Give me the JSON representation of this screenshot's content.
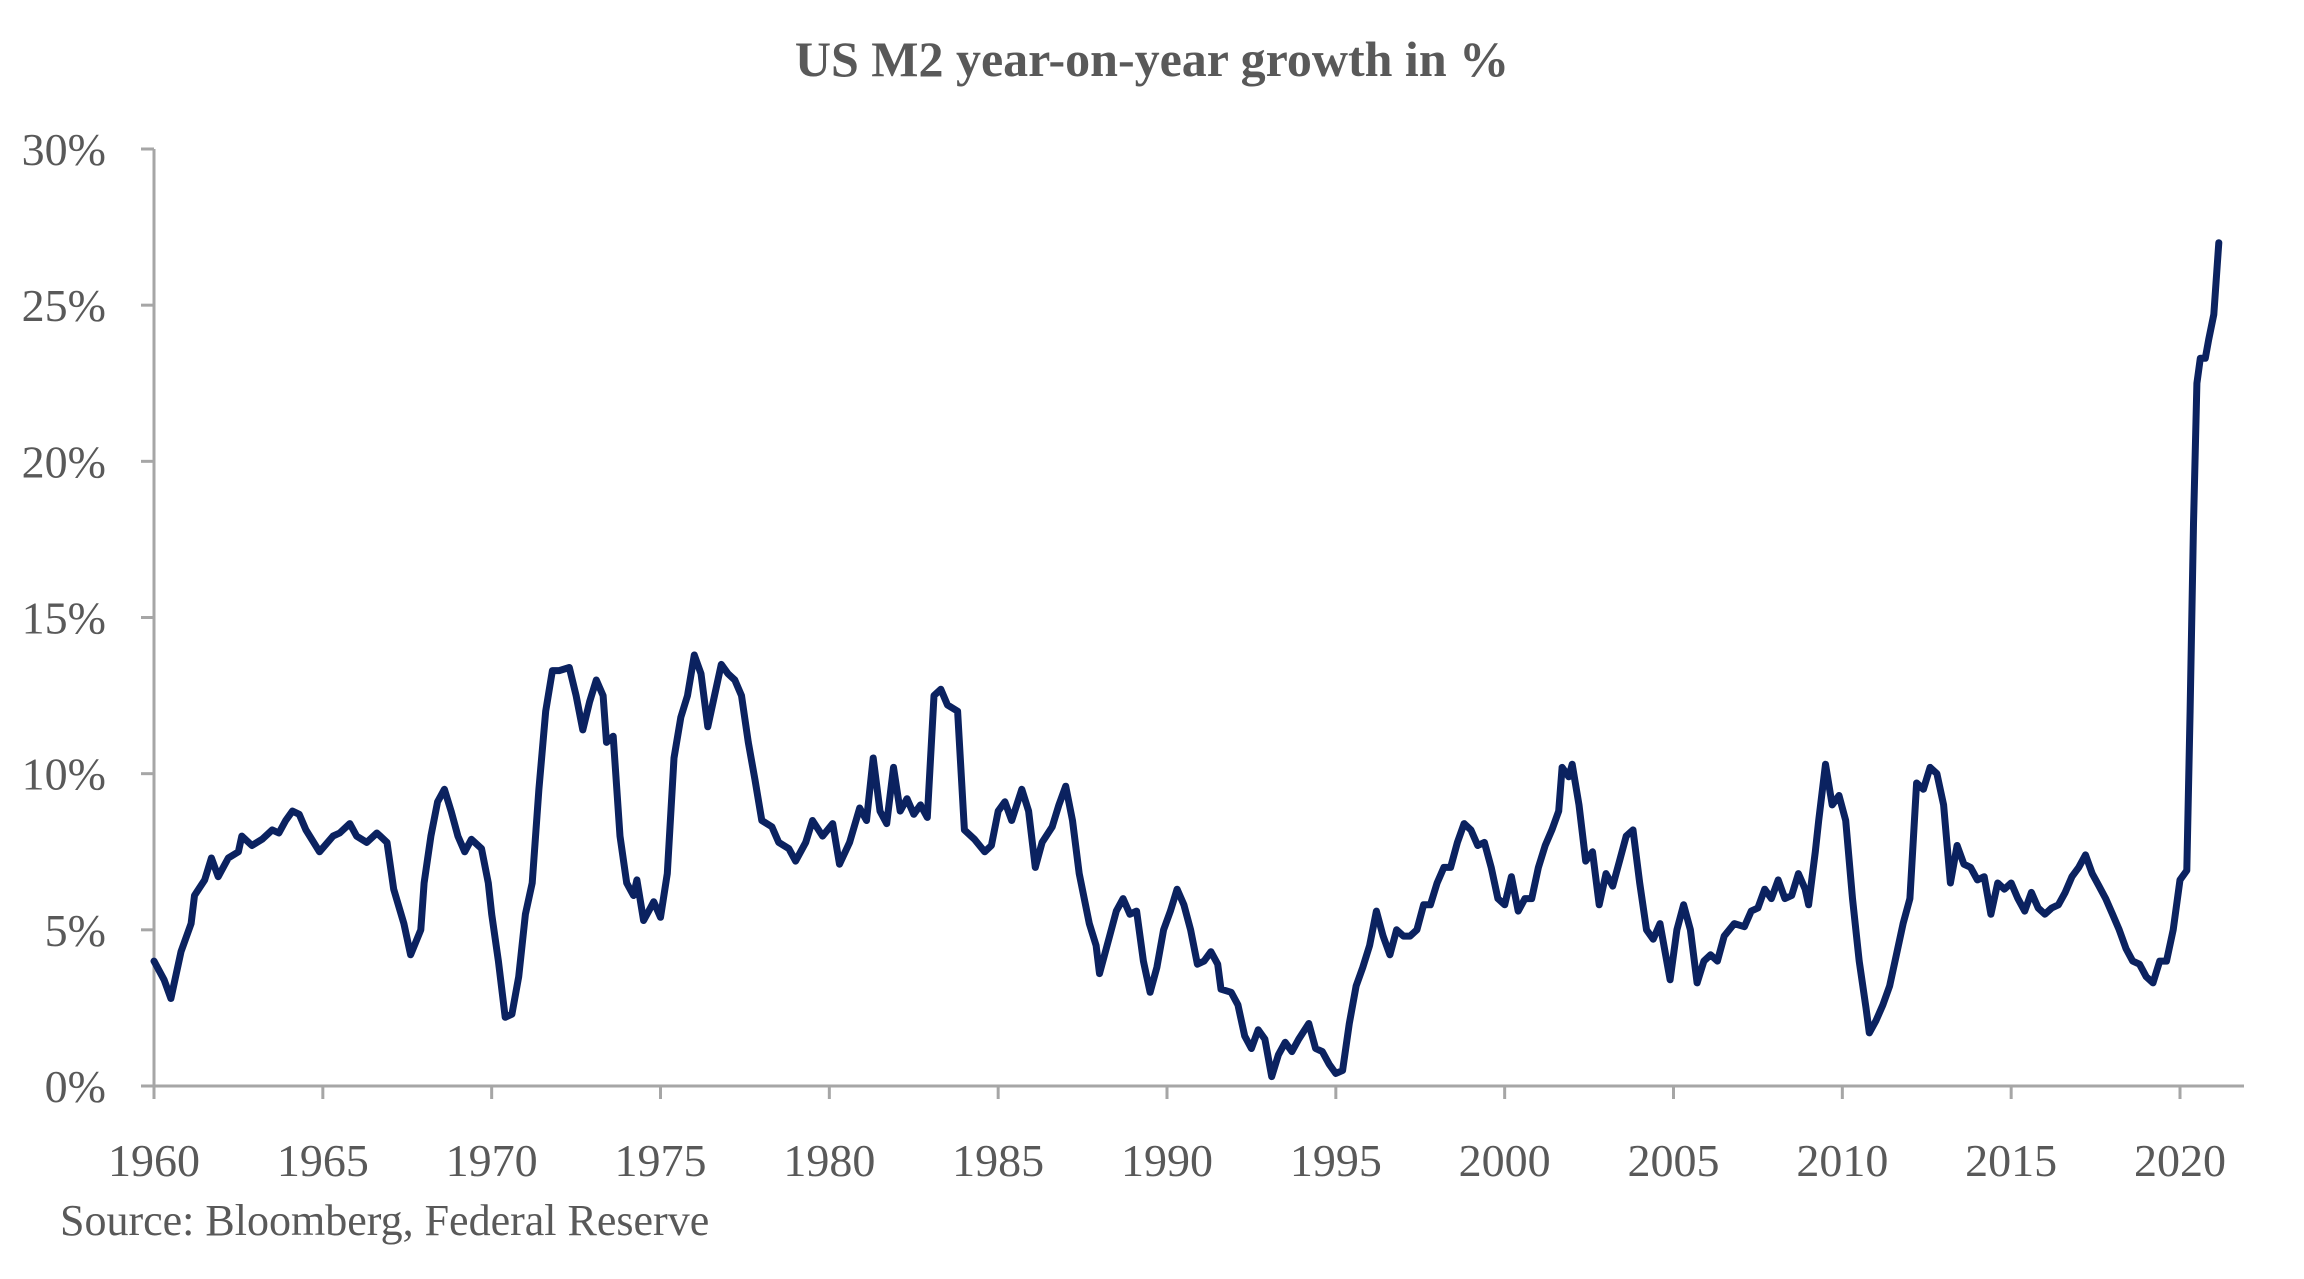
{
  "chart_data": {
    "type": "line",
    "title": "US M2 year-on-year growth in %",
    "source": "Source: Bloomberg, Federal Reserve",
    "xlabel": "",
    "ylabel": "",
    "xlim": [
      1960,
      2022.8
    ],
    "ylim": [
      0,
      30
    ],
    "x_ticks": [
      1960,
      1965,
      1970,
      1975,
      1980,
      1985,
      1990,
      1995,
      2000,
      2005,
      2010,
      2015,
      2020
    ],
    "x_tick_labels": [
      "1960",
      "1965",
      "1970",
      "1975",
      "1980",
      "1985",
      "1990",
      "1995",
      "2000",
      "2005",
      "2010",
      "2015",
      "2020"
    ],
    "y_ticks": [
      0,
      5,
      10,
      15,
      20,
      25,
      30
    ],
    "y_tick_labels": [
      "0%",
      "5%",
      "10%",
      "15%",
      "20%",
      "25%",
      "30%"
    ],
    "grid": false,
    "colors": {
      "line": "#0b2260",
      "axis": "#a6a6a6",
      "text": "#595959"
    },
    "series": [
      {
        "name": "US M2 YoY growth (%)",
        "points": [
          [
            1960.0,
            4.0
          ],
          [
            1960.3,
            3.4
          ],
          [
            1960.5,
            2.8
          ],
          [
            1960.8,
            4.3
          ],
          [
            1961.1,
            5.2
          ],
          [
            1961.2,
            6.1
          ],
          [
            1961.5,
            6.6
          ],
          [
            1961.7,
            7.3
          ],
          [
            1961.9,
            6.7
          ],
          [
            1962.2,
            7.3
          ],
          [
            1962.5,
            7.5
          ],
          [
            1962.6,
            8.0
          ],
          [
            1962.9,
            7.7
          ],
          [
            1963.2,
            7.9
          ],
          [
            1963.5,
            8.2
          ],
          [
            1963.7,
            8.1
          ],
          [
            1963.9,
            8.5
          ],
          [
            1964.1,
            8.8
          ],
          [
            1964.3,
            8.7
          ],
          [
            1964.5,
            8.2
          ],
          [
            1964.9,
            7.5
          ],
          [
            1965.3,
            8.0
          ],
          [
            1965.5,
            8.1
          ],
          [
            1965.8,
            8.4
          ],
          [
            1966.0,
            8.0
          ],
          [
            1966.3,
            7.8
          ],
          [
            1966.6,
            8.1
          ],
          [
            1966.9,
            7.8
          ],
          [
            1967.1,
            6.3
          ],
          [
            1967.4,
            5.2
          ],
          [
            1967.6,
            4.2
          ],
          [
            1967.9,
            5.0
          ],
          [
            1968.0,
            6.5
          ],
          [
            1968.2,
            8.0
          ],
          [
            1968.4,
            9.1
          ],
          [
            1968.6,
            9.5
          ],
          [
            1968.8,
            8.8
          ],
          [
            1969.0,
            8.0
          ],
          [
            1969.2,
            7.5
          ],
          [
            1969.4,
            7.9
          ],
          [
            1969.7,
            7.6
          ],
          [
            1969.9,
            6.5
          ],
          [
            1970.0,
            5.5
          ],
          [
            1970.2,
            4.0
          ],
          [
            1970.4,
            2.2
          ],
          [
            1970.6,
            2.3
          ],
          [
            1970.8,
            3.5
          ],
          [
            1971.0,
            5.5
          ],
          [
            1971.2,
            6.5
          ],
          [
            1971.4,
            9.5
          ],
          [
            1971.6,
            12.0
          ],
          [
            1971.8,
            13.3
          ],
          [
            1972.0,
            13.3
          ],
          [
            1972.3,
            13.4
          ],
          [
            1972.5,
            12.5
          ],
          [
            1972.7,
            11.4
          ],
          [
            1972.9,
            12.3
          ],
          [
            1973.1,
            13.0
          ],
          [
            1973.3,
            12.5
          ],
          [
            1973.4,
            11.0
          ],
          [
            1973.6,
            11.2
          ],
          [
            1973.8,
            8.0
          ],
          [
            1974.0,
            6.5
          ],
          [
            1974.2,
            6.1
          ],
          [
            1974.3,
            6.6
          ],
          [
            1974.5,
            5.3
          ],
          [
            1974.7,
            5.7
          ],
          [
            1974.8,
            5.9
          ],
          [
            1975.0,
            5.4
          ],
          [
            1975.2,
            6.8
          ],
          [
            1975.4,
            10.5
          ],
          [
            1975.6,
            11.8
          ],
          [
            1975.8,
            12.5
          ],
          [
            1976.0,
            13.8
          ],
          [
            1976.2,
            13.2
          ],
          [
            1976.4,
            11.5
          ],
          [
            1976.6,
            12.5
          ],
          [
            1976.8,
            13.5
          ],
          [
            1977.0,
            13.2
          ],
          [
            1977.2,
            13.0
          ],
          [
            1977.4,
            12.5
          ],
          [
            1977.6,
            11.0
          ],
          [
            1977.8,
            9.8
          ],
          [
            1978.0,
            8.5
          ],
          [
            1978.3,
            8.3
          ],
          [
            1978.5,
            7.8
          ],
          [
            1978.8,
            7.6
          ],
          [
            1979.0,
            7.2
          ],
          [
            1979.3,
            7.8
          ],
          [
            1979.5,
            8.5
          ],
          [
            1979.8,
            8.0
          ],
          [
            1980.1,
            8.4
          ],
          [
            1980.3,
            7.1
          ],
          [
            1980.6,
            7.8
          ],
          [
            1980.9,
            8.9
          ],
          [
            1981.1,
            8.5
          ],
          [
            1981.3,
            10.5
          ],
          [
            1981.5,
            8.8
          ],
          [
            1981.7,
            8.4
          ],
          [
            1981.9,
            10.2
          ],
          [
            1982.1,
            8.8
          ],
          [
            1982.3,
            9.2
          ],
          [
            1982.5,
            8.7
          ],
          [
            1982.7,
            9.0
          ],
          [
            1982.9,
            8.6
          ],
          [
            1983.1,
            12.5
          ],
          [
            1983.3,
            12.7
          ],
          [
            1983.5,
            12.2
          ],
          [
            1983.8,
            12.0
          ],
          [
            1984.0,
            8.2
          ],
          [
            1984.3,
            7.9
          ],
          [
            1984.6,
            7.5
          ],
          [
            1984.8,
            7.7
          ],
          [
            1985.0,
            8.8
          ],
          [
            1985.2,
            9.1
          ],
          [
            1985.4,
            8.5
          ],
          [
            1985.7,
            9.5
          ],
          [
            1985.9,
            8.8
          ],
          [
            1986.1,
            7.0
          ],
          [
            1986.3,
            7.8
          ],
          [
            1986.6,
            8.3
          ],
          [
            1986.8,
            9.0
          ],
          [
            1987.0,
            9.6
          ],
          [
            1987.2,
            8.5
          ],
          [
            1987.4,
            6.8
          ],
          [
            1987.7,
            5.2
          ],
          [
            1987.9,
            4.5
          ],
          [
            1988.0,
            3.6
          ],
          [
            1988.3,
            4.8
          ],
          [
            1988.5,
            5.6
          ],
          [
            1988.7,
            6.0
          ],
          [
            1988.9,
            5.5
          ],
          [
            1989.1,
            5.6
          ],
          [
            1989.3,
            4.0
          ],
          [
            1989.5,
            3.0
          ],
          [
            1989.7,
            3.8
          ],
          [
            1989.9,
            5.0
          ],
          [
            1990.1,
            5.6
          ],
          [
            1990.3,
            6.3
          ],
          [
            1990.5,
            5.8
          ],
          [
            1990.7,
            5.0
          ],
          [
            1990.9,
            3.9
          ],
          [
            1991.1,
            4.0
          ],
          [
            1991.3,
            4.3
          ],
          [
            1991.5,
            3.9
          ],
          [
            1991.6,
            3.1
          ],
          [
            1991.9,
            3.0
          ],
          [
            1992.1,
            2.6
          ],
          [
            1992.3,
            1.6
          ],
          [
            1992.5,
            1.2
          ],
          [
            1992.7,
            1.8
          ],
          [
            1992.9,
            1.5
          ],
          [
            1993.1,
            0.3
          ],
          [
            1993.3,
            1.0
          ],
          [
            1993.5,
            1.4
          ],
          [
            1993.7,
            1.1
          ],
          [
            1993.9,
            1.5
          ],
          [
            1994.2,
            2.0
          ],
          [
            1994.4,
            1.2
          ],
          [
            1994.6,
            1.1
          ],
          [
            1994.8,
            0.7
          ],
          [
            1995.0,
            0.4
          ],
          [
            1995.2,
            0.5
          ],
          [
            1995.4,
            2.0
          ],
          [
            1995.6,
            3.2
          ],
          [
            1995.8,
            3.8
          ],
          [
            1996.0,
            4.5
          ],
          [
            1996.2,
            5.6
          ],
          [
            1996.4,
            4.8
          ],
          [
            1996.6,
            4.2
          ],
          [
            1996.8,
            5.0
          ],
          [
            1997.0,
            4.8
          ],
          [
            1997.2,
            4.8
          ],
          [
            1997.4,
            5.0
          ],
          [
            1997.6,
            5.8
          ],
          [
            1997.8,
            5.8
          ],
          [
            1998.0,
            6.5
          ],
          [
            1998.2,
            7.0
          ],
          [
            1998.4,
            7.0
          ],
          [
            1998.6,
            7.8
          ],
          [
            1998.8,
            8.4
          ],
          [
            1999.0,
            8.2
          ],
          [
            1999.2,
            7.7
          ],
          [
            1999.4,
            7.8
          ],
          [
            1999.6,
            7.0
          ],
          [
            1999.8,
            6.0
          ],
          [
            2000.0,
            5.8
          ],
          [
            2000.2,
            6.7
          ],
          [
            2000.4,
            5.6
          ],
          [
            2000.6,
            6.0
          ],
          [
            2000.8,
            6.0
          ],
          [
            2001.0,
            7.0
          ],
          [
            2001.2,
            7.7
          ],
          [
            2001.4,
            8.2
          ],
          [
            2001.6,
            8.8
          ],
          [
            2001.7,
            10.2
          ],
          [
            2001.9,
            9.9
          ],
          [
            2002.0,
            10.3
          ],
          [
            2002.2,
            9.0
          ],
          [
            2002.4,
            7.2
          ],
          [
            2002.6,
            7.5
          ],
          [
            2002.8,
            5.8
          ],
          [
            2003.0,
            6.8
          ],
          [
            2003.2,
            6.4
          ],
          [
            2003.4,
            7.2
          ],
          [
            2003.6,
            8.0
          ],
          [
            2003.8,
            8.2
          ],
          [
            2004.0,
            6.5
          ],
          [
            2004.2,
            5.0
          ],
          [
            2004.4,
            4.7
          ],
          [
            2004.6,
            5.2
          ],
          [
            2004.9,
            3.4
          ],
          [
            2005.1,
            5.0
          ],
          [
            2005.3,
            5.8
          ],
          [
            2005.5,
            5.0
          ],
          [
            2005.7,
            3.3
          ],
          [
            2005.9,
            4.0
          ],
          [
            2006.1,
            4.2
          ],
          [
            2006.3,
            4.0
          ],
          [
            2006.5,
            4.8
          ],
          [
            2006.8,
            5.2
          ],
          [
            2007.1,
            5.1
          ],
          [
            2007.3,
            5.6
          ],
          [
            2007.5,
            5.7
          ],
          [
            2007.7,
            6.3
          ],
          [
            2007.9,
            6.0
          ],
          [
            2008.1,
            6.6
          ],
          [
            2008.3,
            6.0
          ],
          [
            2008.5,
            6.1
          ],
          [
            2008.7,
            6.8
          ],
          [
            2008.9,
            6.3
          ],
          [
            2009.0,
            5.8
          ],
          [
            2009.2,
            7.5
          ],
          [
            2009.3,
            8.5
          ],
          [
            2009.5,
            10.3
          ],
          [
            2009.7,
            9.0
          ],
          [
            2009.9,
            9.3
          ],
          [
            2010.1,
            8.5
          ],
          [
            2010.3,
            6.0
          ],
          [
            2010.5,
            4.0
          ],
          [
            2010.7,
            2.5
          ],
          [
            2010.8,
            1.7
          ],
          [
            2011.0,
            2.1
          ],
          [
            2011.2,
            2.6
          ],
          [
            2011.4,
            3.2
          ],
          [
            2011.6,
            4.2
          ],
          [
            2011.8,
            5.2
          ],
          [
            2012.0,
            6.0
          ],
          [
            2012.2,
            9.7
          ],
          [
            2012.4,
            9.5
          ],
          [
            2012.6,
            10.2
          ],
          [
            2012.8,
            10.0
          ],
          [
            2013.0,
            9.0
          ],
          [
            2013.2,
            6.5
          ],
          [
            2013.4,
            7.7
          ],
          [
            2013.6,
            7.1
          ],
          [
            2013.8,
            7.0
          ],
          [
            2014.0,
            6.6
          ],
          [
            2014.2,
            6.7
          ],
          [
            2014.4,
            5.5
          ],
          [
            2014.6,
            6.5
          ],
          [
            2014.8,
            6.3
          ],
          [
            2015.0,
            6.5
          ],
          [
            2015.2,
            6.0
          ],
          [
            2015.4,
            5.6
          ],
          [
            2015.6,
            6.2
          ],
          [
            2015.8,
            5.7
          ],
          [
            2016.0,
            5.5
          ],
          [
            2016.2,
            5.7
          ],
          [
            2016.4,
            5.8
          ],
          [
            2016.6,
            6.2
          ],
          [
            2016.8,
            6.7
          ],
          [
            2017.0,
            7.0
          ],
          [
            2017.2,
            7.4
          ],
          [
            2017.4,
            6.8
          ],
          [
            2017.6,
            6.4
          ],
          [
            2017.8,
            6.0
          ],
          [
            2018.0,
            5.5
          ],
          [
            2018.2,
            5.0
          ],
          [
            2018.4,
            4.4
          ],
          [
            2018.6,
            4.0
          ],
          [
            2018.8,
            3.9
          ],
          [
            2019.0,
            3.5
          ],
          [
            2019.2,
            3.3
          ],
          [
            2019.4,
            4.0
          ],
          [
            2019.6,
            4.0
          ],
          [
            2019.8,
            5.0
          ],
          [
            2020.0,
            6.6
          ],
          [
            2020.2,
            6.9
          ],
          [
            2020.3,
            12.0
          ],
          [
            2020.4,
            18.0
          ],
          [
            2020.5,
            22.5
          ],
          [
            2020.6,
            23.3
          ],
          [
            2020.75,
            23.3
          ],
          [
            2020.85,
            23.9
          ],
          [
            2021.0,
            24.7
          ],
          [
            2021.15,
            27.0
          ]
        ]
      }
    ]
  }
}
